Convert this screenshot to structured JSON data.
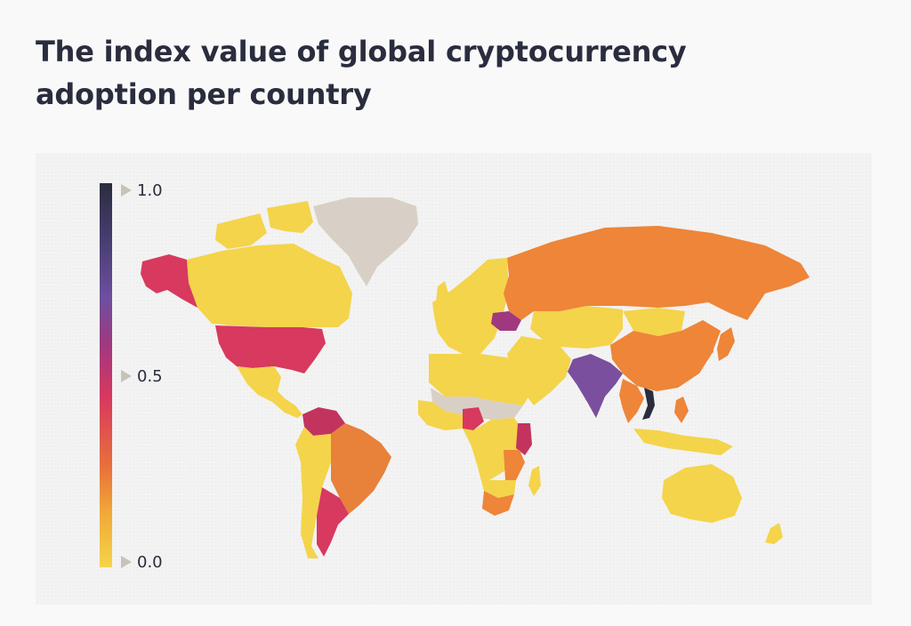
{
  "title": "The index value of global cryptocurrency adoption per country",
  "legend": {
    "max_label": "1.0",
    "mid_label": "0.5",
    "min_label": "0.0",
    "scale_colors": [
      "#f4d44a",
      "#f2a938",
      "#e8713a",
      "#d8395e",
      "#a03880",
      "#6e4fa0",
      "#4a3f76",
      "#2a2d3d"
    ],
    "no_data_color": "#d8d0c6"
  },
  "chart_data": {
    "type": "choropleth",
    "value_range": [
      0,
      1
    ],
    "regions": [
      {
        "name": "Canada",
        "value": 0.05
      },
      {
        "name": "United States",
        "value": 0.33
      },
      {
        "name": "Alaska",
        "value": 0.33
      },
      {
        "name": "Mexico",
        "value": 0.05
      },
      {
        "name": "Central America",
        "value": 0.05
      },
      {
        "name": "Colombia",
        "value": 0.36
      },
      {
        "name": "Venezuela",
        "value": 0.36
      },
      {
        "name": "Brazil",
        "value": 0.18
      },
      {
        "name": "Argentina",
        "value": 0.3
      },
      {
        "name": "Peru",
        "value": 0.05
      },
      {
        "name": "Chile",
        "value": 0.05
      },
      {
        "name": "Russia",
        "value": 0.2
      },
      {
        "name": "China",
        "value": 0.2
      },
      {
        "name": "Ukraine",
        "value": 0.55
      },
      {
        "name": "India",
        "value": 0.6
      },
      {
        "name": "Vietnam",
        "value": 1.0
      },
      {
        "name": "Thailand",
        "value": 0.2
      },
      {
        "name": "Philippines",
        "value": 0.2
      },
      {
        "name": "Nigeria",
        "value": 0.38
      },
      {
        "name": "Kenya",
        "value": 0.38
      },
      {
        "name": "Tanzania",
        "value": 0.18
      },
      {
        "name": "South Africa",
        "value": 0.18
      },
      {
        "name": "Europe",
        "value": 0.05
      },
      {
        "name": "Australia",
        "value": 0.05
      },
      {
        "name": "Greenland",
        "value": null
      }
    ]
  }
}
